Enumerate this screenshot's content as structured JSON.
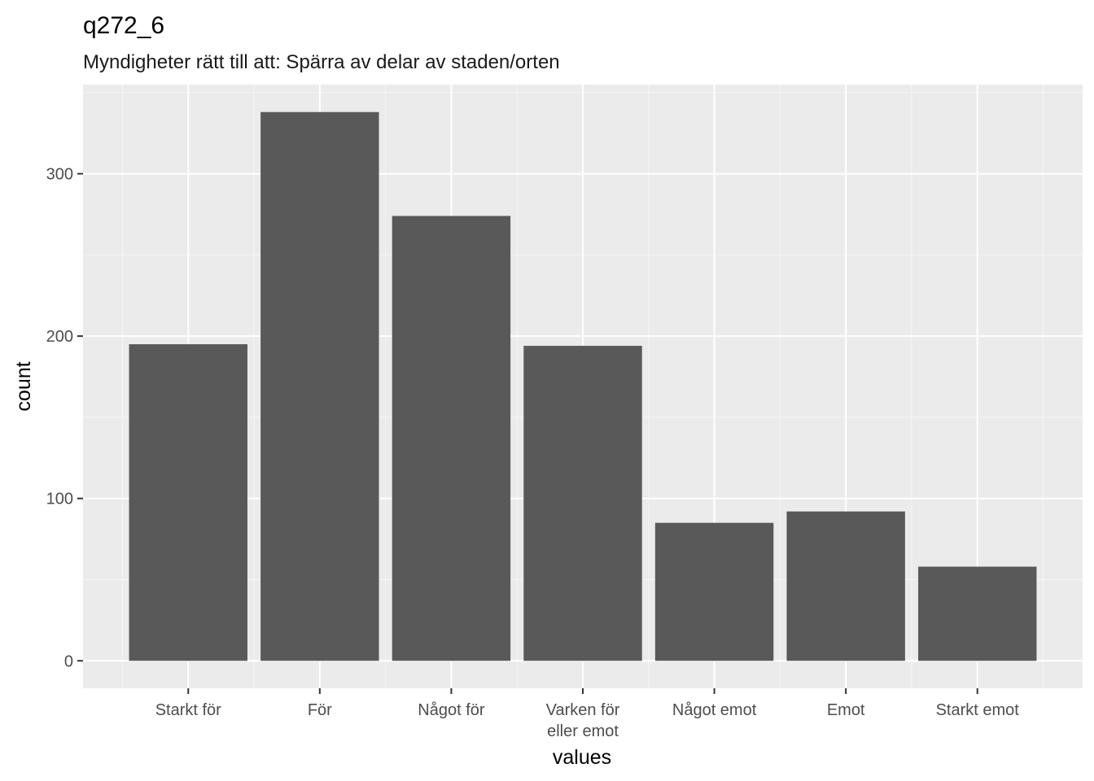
{
  "chart_data": {
    "type": "bar",
    "title": "q272_6",
    "subtitle": "Myndigheter rätt till att: Spärra av delar av staden/orten",
    "xlabel": "values",
    "ylabel": "count",
    "categories": [
      [
        "Starkt för"
      ],
      [
        "För"
      ],
      [
        "Något för"
      ],
      [
        "Varken för",
        "eller emot"
      ],
      [
        "Något emot"
      ],
      [
        "Emot"
      ],
      [
        "Starkt emot"
      ]
    ],
    "values": [
      195,
      338,
      274,
      194,
      85,
      92,
      58
    ],
    "ylim": [
      -16.9,
      354.9
    ],
    "yticks": [
      0,
      100,
      200,
      300
    ],
    "grid": true,
    "colors": {
      "panel": "#ebebeb",
      "grid": "#ffffff",
      "bar": "#595959",
      "tick_text": "#4d4d4d",
      "tick_mark": "#333333"
    }
  }
}
